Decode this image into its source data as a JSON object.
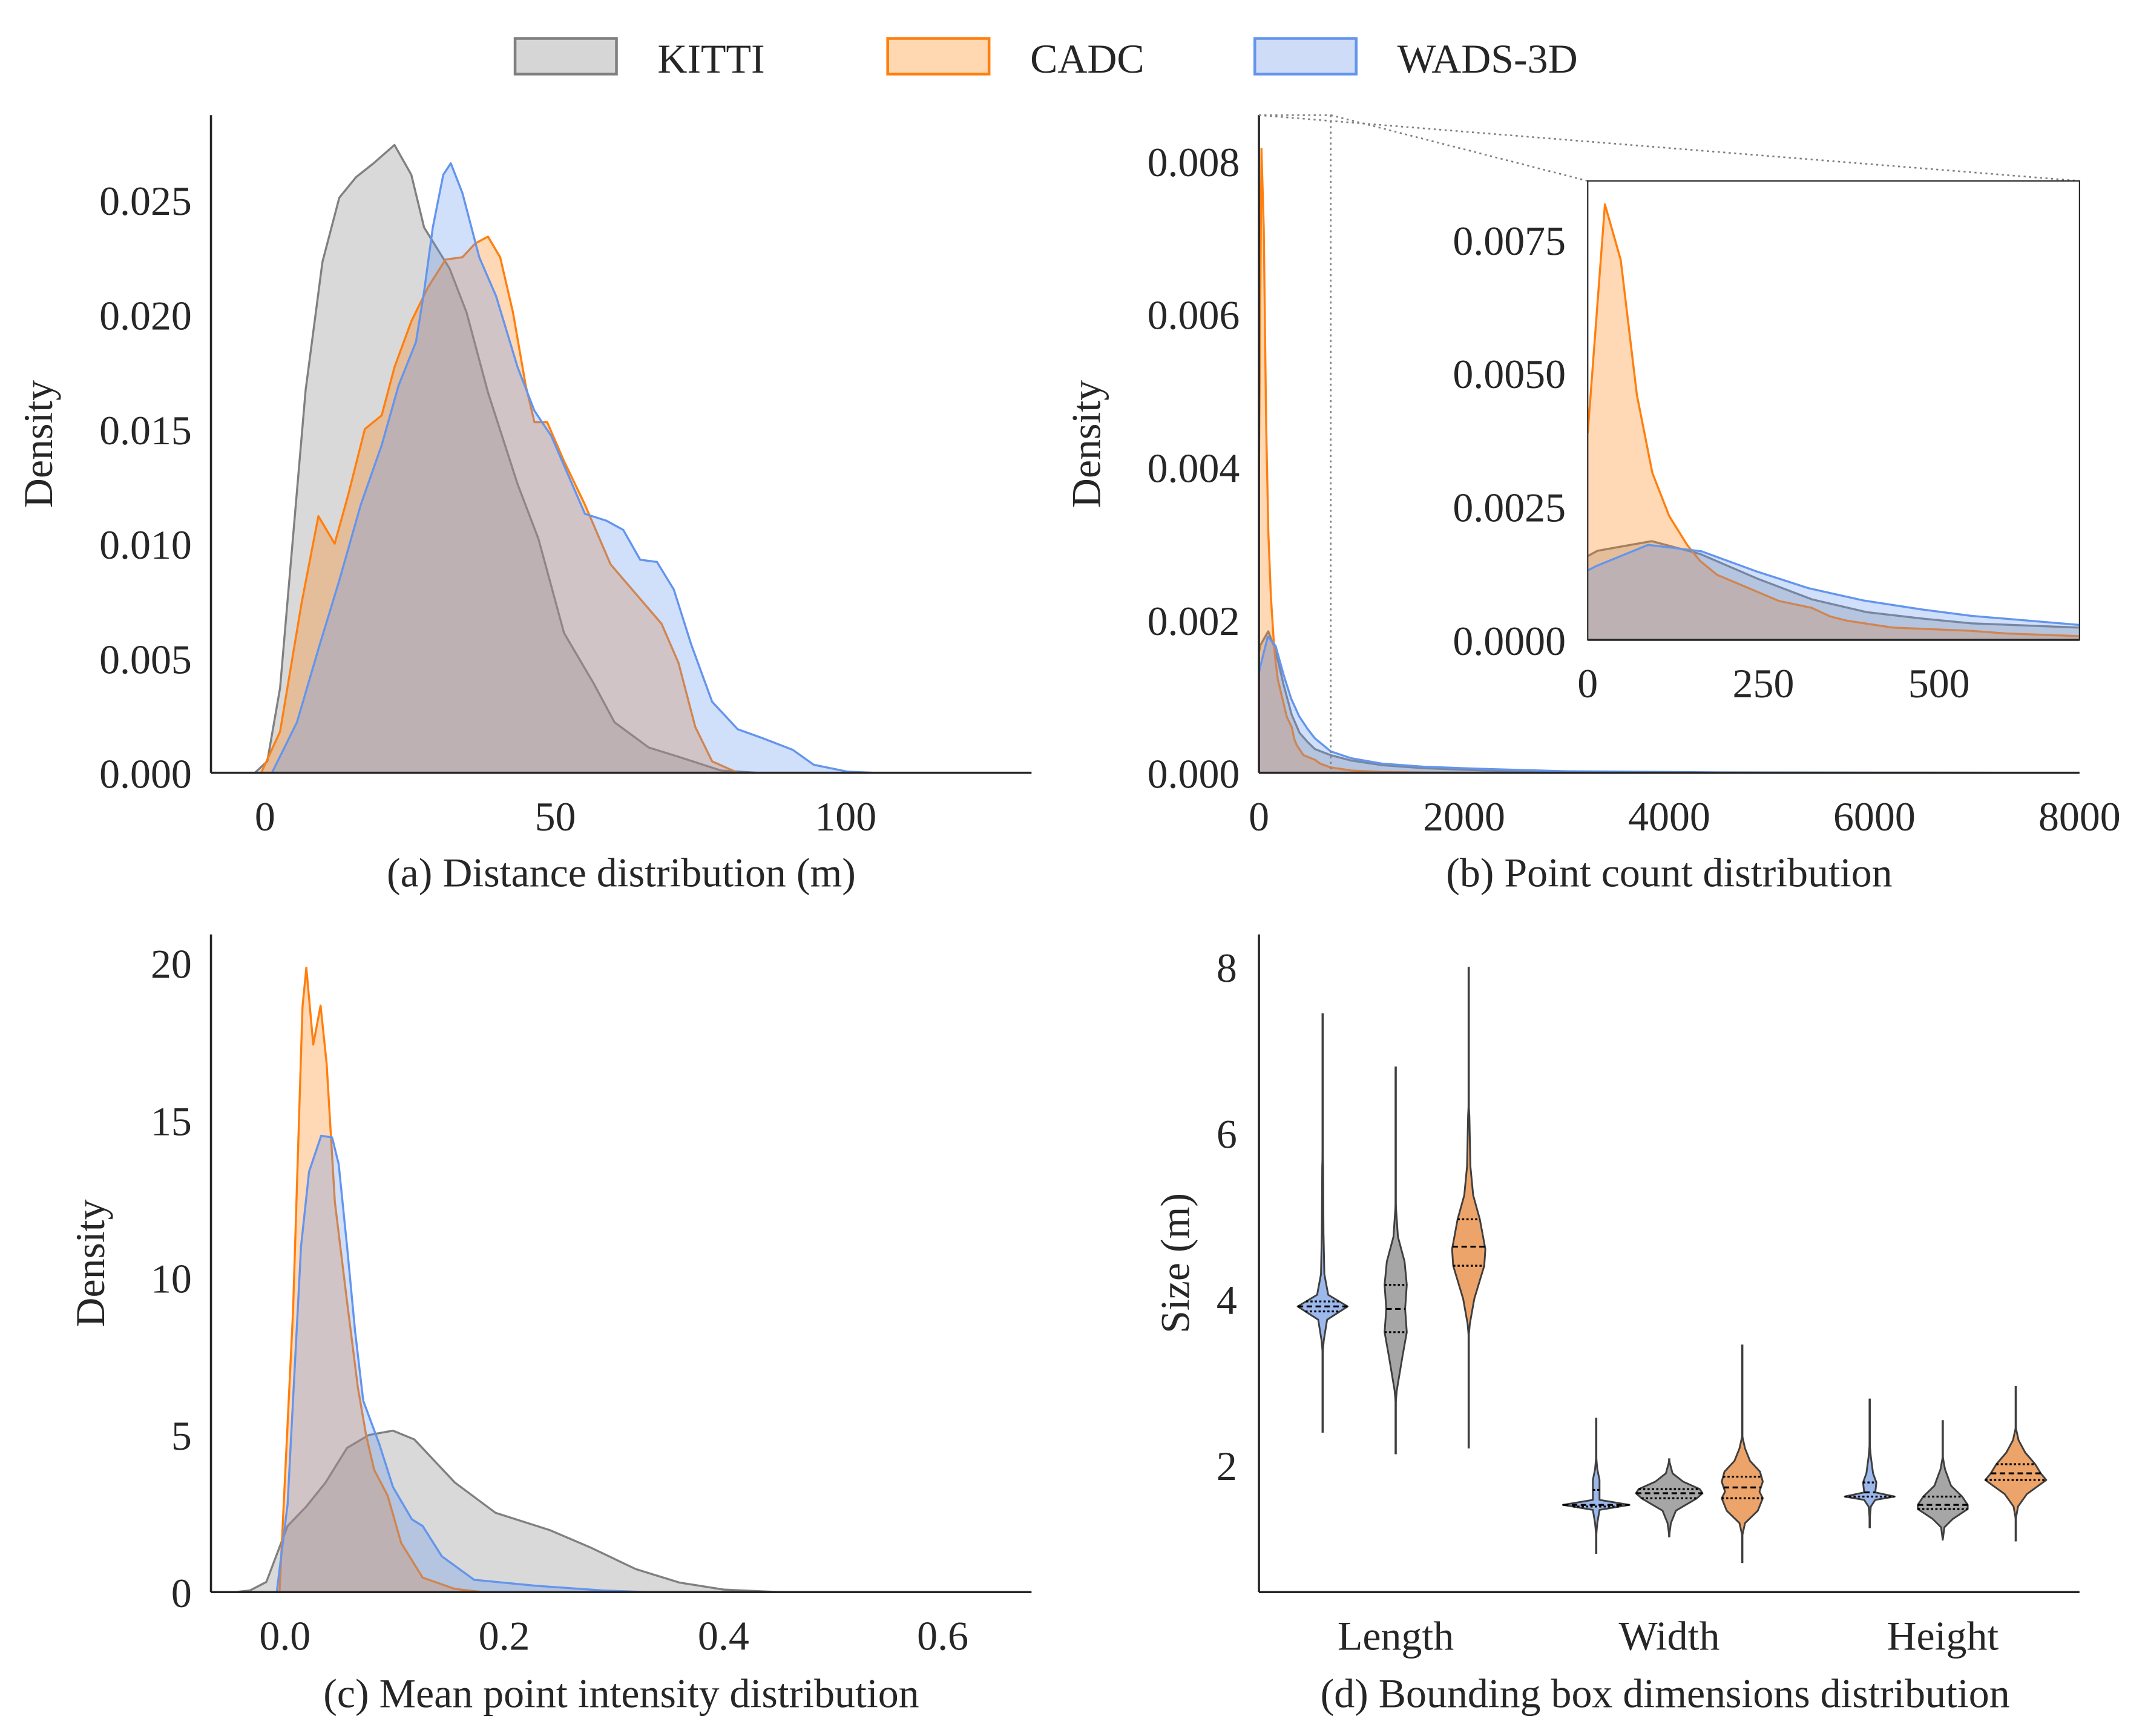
{
  "legend": {
    "items": [
      {
        "label": "KITTI",
        "key": "kitti"
      },
      {
        "label": "CADC",
        "key": "cadc"
      },
      {
        "label": "WADS-3D",
        "key": "wads"
      }
    ]
  },
  "colors": {
    "kitti": {
      "line": "#808080",
      "fill": "#d6d6d6"
    },
    "cadc": {
      "line": "#ff7f0e",
      "fill": "#ffd8b2"
    },
    "wads": {
      "line": "#6495ed",
      "fill": "#cfdcf7"
    },
    "violin": {
      "kitti": "#a6a6a6",
      "cadc": "#eda46a",
      "wads": "#9cb8ec"
    }
  },
  "chart_data": [
    {
      "id": "a",
      "type": "area",
      "title": "",
      "caption": "(a) Distance distribution (m)",
      "xlabel": "",
      "ylabel": "Density",
      "xlim": [
        -9.3,
        132
      ],
      "ylim": [
        0,
        0.0287
      ],
      "xticks": [
        0,
        50,
        100
      ],
      "xtick_labels": [
        "0",
        "50",
        "100"
      ],
      "yticks": [
        0,
        0.005,
        0.01,
        0.015,
        0.02,
        0.025
      ],
      "ytick_labels": [
        "0.000",
        "0.005",
        "0.010",
        "0.015",
        "0.020",
        "0.025"
      ],
      "grid": false,
      "series": [
        {
          "name": "KITTI",
          "key": "kitti",
          "x": [
            -3,
            -1.75,
            0.4,
            2.6,
            4.8,
            7.0,
            9.9,
            12.8,
            15.7,
            18.7,
            22.3,
            25.2,
            27.4,
            31.8,
            34.7,
            38.4,
            43.5,
            47.1,
            51.5,
            56.6,
            60.2,
            66.1,
            71.2,
            78.5,
            84.7
          ],
          "y": [
            0,
            0,
            0.0005,
            0.0037,
            0.0102,
            0.0167,
            0.0223,
            0.0251,
            0.026,
            0.0266,
            0.0274,
            0.0261,
            0.0238,
            0.022,
            0.0201,
            0.0166,
            0.0126,
            0.0102,
            0.0061,
            0.0039,
            0.0022,
            0.0011,
            0.0007,
            0.0001,
            0
          ]
        },
        {
          "name": "CADC",
          "key": "cadc",
          "x": [
            -0.65,
            2.6,
            6.3,
            9.2,
            12.0,
            14.3,
            17.2,
            20.1,
            22.3,
            25.2,
            28.1,
            31.1,
            34.0,
            36.2,
            38.4,
            40.5,
            42.7,
            44.9,
            46.4,
            48.6,
            51.5,
            55.1,
            59.5,
            63.9,
            68.3,
            71.2,
            74.1,
            77.0,
            81.4
          ],
          "y": [
            0,
            0.0018,
            0.0074,
            0.0112,
            0.01,
            0.0121,
            0.015,
            0.0156,
            0.0177,
            0.0197,
            0.0212,
            0.0224,
            0.0225,
            0.0231,
            0.0234,
            0.0225,
            0.0201,
            0.0169,
            0.0153,
            0.0153,
            0.0136,
            0.0117,
            0.0091,
            0.0078,
            0.0065,
            0.0048,
            0.002,
            0.0005,
            0
          ]
        },
        {
          "name": "WADS-3D",
          "key": "wads",
          "x": [
            1.2,
            5.5,
            9.2,
            12.8,
            16.5,
            20.1,
            23.0,
            26.0,
            27.4,
            28.9,
            30.7,
            32.0,
            34.0,
            36.9,
            39.8,
            43.5,
            46.4,
            49.3,
            52.2,
            55.1,
            58.8,
            61.7,
            64.6,
            67.5,
            70.4,
            73.4,
            77.0,
            81.4,
            85.8,
            90.9,
            94.5,
            100.3,
            104.7
          ],
          "y": [
            0,
            0.0022,
            0.0054,
            0.0084,
            0.0117,
            0.0143,
            0.0169,
            0.0188,
            0.021,
            0.0238,
            0.0261,
            0.0266,
            0.0253,
            0.0225,
            0.0208,
            0.0177,
            0.0158,
            0.0147,
            0.013,
            0.0113,
            0.011,
            0.0106,
            0.0093,
            0.0092,
            0.008,
            0.0056,
            0.0031,
            0.0019,
            0.0015,
            0.001,
            0.00035,
            5e-05,
            0
          ]
        }
      ]
    },
    {
      "id": "b",
      "type": "area",
      "title": "",
      "caption": "(b) Point count distribution",
      "xlabel": "",
      "ylabel": "Density",
      "xlim": [
        0,
        8000
      ],
      "ylim": [
        0,
        0.0086
      ],
      "xticks": [
        0,
        2000,
        4000,
        6000,
        8000
      ],
      "xtick_labels": [
        "0",
        "2000",
        "4000",
        "6000",
        "8000"
      ],
      "yticks": [
        0,
        0.002,
        0.004,
        0.006,
        0.008
      ],
      "ytick_labels": [
        "0.000",
        "0.002",
        "0.004",
        "0.006",
        "0.008"
      ],
      "grid": false,
      "series": [
        {
          "name": "KITTI",
          "key": "kitti",
          "x": [
            0,
            14,
            91,
            160,
            241,
            319,
            397,
            476,
            546,
            700,
            900,
            1200,
            1600,
            2200,
            3000,
            4500,
            6000,
            8000
          ],
          "y": [
            0.00157,
            0.00167,
            0.00185,
            0.00161,
            0.00115,
            0.00076,
            0.00052,
            0.0004,
            0.00031,
            0.00023,
            0.00016,
            0.0001,
            6e-05,
            3e-05,
            1e-05,
            3e-06,
            1e-06,
            0
          ]
        },
        {
          "name": "CADC",
          "key": "cadc",
          "x": [
            0,
            24.5,
            47,
            70,
            92,
            116,
            142,
            160,
            184,
            220,
            272,
            319,
            345,
            369,
            434,
            546,
            596,
            700,
            900,
            1200,
            1600,
            2200,
            3000,
            8000
          ],
          "y": [
            0.00387,
            0.00816,
            0.00712,
            0.00459,
            0.00313,
            0.00232,
            0.00177,
            0.00148,
            0.00122,
            0.00102,
            0.00073,
            0.0006,
            0.00044,
            0.00036,
            0.00023,
            0.00017,
            0.00012,
            7e-05,
            3e-05,
            1e-05,
            4e-06,
            1e-06,
            0,
            0
          ]
        },
        {
          "name": "WADS-3D",
          "key": "wads",
          "x": [
            0,
            11.5,
            86,
            162,
            241,
            314,
            392,
            476,
            546,
            700,
            900,
            1200,
            1600,
            2200,
            3000,
            4500,
            6000,
            8000
          ],
          "y": [
            0.0013,
            0.00138,
            0.00178,
            0.00166,
            0.00128,
            0.00097,
            0.00074,
            0.00057,
            0.00045,
            0.00028,
            0.00019,
            0.00012,
            8e-05,
            5e-05,
            2e-05,
            5e-06,
            1e-06,
            0
          ]
        }
      ],
      "inset": {
        "xlim": [
          0,
          700
        ],
        "ylim": [
          0,
          0.0086
        ],
        "xticks": [
          0,
          250,
          500
        ],
        "xtick_labels": [
          "0",
          "250",
          "500"
        ],
        "yticks": [
          0,
          0.0025,
          0.005,
          0.0075
        ],
        "ytick_labels": [
          "0.0000",
          "0.0025",
          "0.0050",
          "0.0075"
        ],
        "zoom_region": {
          "x": [
            0,
            700
          ]
        }
      }
    },
    {
      "id": "c",
      "type": "area",
      "title": "",
      "caption": "(c) Mean point intensity distribution",
      "xlabel": "",
      "ylabel": "Density",
      "xlim": [
        -0.0675,
        0.681
      ],
      "ylim": [
        0,
        20.9
      ],
      "xticks": [
        0,
        0.2,
        0.4,
        0.6
      ],
      "xtick_labels": [
        "0.0",
        "0.2",
        "0.4",
        "0.6"
      ],
      "yticks": [
        0,
        5,
        10,
        15,
        20
      ],
      "ytick_labels": [
        "0",
        "5",
        "10",
        "15",
        "20"
      ],
      "grid": false,
      "series": [
        {
          "name": "KITTI",
          "key": "kitti",
          "x": [
            -0.045,
            -0.032,
            -0.017,
            0.0024,
            0.0195,
            0.037,
            0.0566,
            0.0764,
            0.0985,
            0.118,
            0.155,
            0.192,
            0.2415,
            0.2785,
            0.32,
            0.36,
            0.4,
            0.45
          ],
          "y": [
            0,
            0.05,
            0.32,
            2.1,
            2.72,
            3.48,
            4.58,
            4.99,
            5.13,
            4.85,
            3.48,
            2.52,
            1.97,
            1.42,
            0.73,
            0.3,
            0.08,
            0
          ]
        },
        {
          "name": "CADC",
          "key": "cadc",
          "x": [
            -0.005,
            0.0074,
            0.016,
            0.0195,
            0.0258,
            0.0325,
            0.038,
            0.0455,
            0.0566,
            0.0665,
            0.074,
            0.0813,
            0.0936,
            0.106,
            0.1256,
            0.155,
            0.18
          ],
          "y": [
            0,
            8.96,
            18.6,
            19.84,
            17.4,
            18.64,
            16.8,
            12.4,
            9.24,
            6.5,
            4.99,
            3.89,
            3.07,
            1.56,
            0.46,
            0.1,
            0
          ]
        },
        {
          "name": "WADS-3D",
          "key": "wads",
          "x": [
            -0.0075,
            0.0024,
            0.0147,
            0.022,
            0.033,
            0.043,
            0.049,
            0.0566,
            0.064,
            0.0714,
            0.086,
            0.0985,
            0.1158,
            0.1256,
            0.143,
            0.1725,
            0.229,
            0.29,
            0.33
          ],
          "y": [
            0,
            2.79,
            11.0,
            13.36,
            14.5,
            14.45,
            13.6,
            11.0,
            8.28,
            6.08,
            4.71,
            3.34,
            2.31,
            2.1,
            1.14,
            0.39,
            0.2,
            0.05,
            0
          ]
        }
      ]
    },
    {
      "id": "d",
      "type": "violin",
      "title": "",
      "caption": "(d) Bounding box dimensions distribution",
      "xlabel": "",
      "ylabel": "Size (m)",
      "ylim": [
        0.47,
        8.39
      ],
      "yticks": [
        2,
        4,
        6,
        8
      ],
      "ytick_labels": [
        "2",
        "4",
        "6",
        "8"
      ],
      "categories": [
        "Length",
        "Width",
        "Height"
      ],
      "hue_order": [
        "wads",
        "kitti",
        "cadc"
      ],
      "grid": false,
      "violins": [
        {
          "category": "Length",
          "key": "wads",
          "min": 2.39,
          "max": 7.44,
          "q1": 3.85,
          "median": 3.91,
          "q3": 3.97,
          "q3_marker": 4.47,
          "body": [
            [
              3.5,
              0.02
            ],
            [
              3.75,
              0.08
            ],
            [
              3.91,
              0.45
            ],
            [
              4.05,
              0.1
            ],
            [
              4.3,
              0.03
            ],
            [
              4.8,
              0.015
            ],
            [
              5.6,
              0.008
            ]
          ]
        },
        {
          "category": "Length",
          "key": "kitti",
          "min": 2.13,
          "max": 6.8,
          "q1": 3.6,
          "median": 3.88,
          "q3": 4.17,
          "body": [
            [
              2.9,
              0.02
            ],
            [
              3.3,
              0.12
            ],
            [
              3.6,
              0.2
            ],
            [
              3.88,
              0.17
            ],
            [
              4.17,
              0.2
            ],
            [
              4.45,
              0.16
            ],
            [
              4.75,
              0.04
            ],
            [
              5.0,
              0.015
            ]
          ]
        },
        {
          "category": "Length",
          "key": "cadc",
          "min": 2.2,
          "max": 8.0,
          "q1": 4.4,
          "median": 4.63,
          "q3": 4.96,
          "body": [
            [
              3.7,
              0.02
            ],
            [
              4.0,
              0.1
            ],
            [
              4.4,
              0.28
            ],
            [
              4.6,
              0.3
            ],
            [
              4.96,
              0.2
            ],
            [
              5.25,
              0.08
            ],
            [
              5.6,
              0.03
            ],
            [
              6.2,
              0.012
            ]
          ]
        },
        {
          "category": "Width",
          "key": "wads",
          "min": 0.93,
          "max": 2.57,
          "q1": 1.5,
          "median": 1.52,
          "q3": 1.7,
          "body": [
            [
              1.3,
              0.02
            ],
            [
              1.46,
              0.06
            ],
            [
              1.52,
              0.6
            ],
            [
              1.58,
              0.06
            ],
            [
              1.7,
              0.06
            ],
            [
              1.82,
              0.06
            ],
            [
              1.95,
              0.02
            ]
          ]
        },
        {
          "category": "Width",
          "key": "kitti",
          "min": 1.13,
          "max": 2.08,
          "q1": 1.6,
          "median": 1.66,
          "q3": 1.71,
          "body": [
            [
              1.3,
              0.03
            ],
            [
              1.45,
              0.12
            ],
            [
              1.6,
              0.5
            ],
            [
              1.66,
              0.6
            ],
            [
              1.71,
              0.55
            ],
            [
              1.8,
              0.25
            ],
            [
              1.9,
              0.06
            ]
          ]
        },
        {
          "category": "Width",
          "key": "cadc",
          "min": 0.82,
          "max": 3.45,
          "q1": 1.6,
          "median": 1.73,
          "q3": 1.86,
          "body": [
            [
              1.3,
              0.05
            ],
            [
              1.45,
              0.28
            ],
            [
              1.6,
              0.37
            ],
            [
              1.68,
              0.31
            ],
            [
              1.8,
              0.37
            ],
            [
              1.92,
              0.32
            ],
            [
              2.05,
              0.14
            ],
            [
              2.2,
              0.05
            ]
          ]
        },
        {
          "category": "Height",
          "key": "wads",
          "min": 1.24,
          "max": 2.8,
          "q1": 1.62,
          "median": 1.67,
          "q3": 1.79,
          "body": [
            [
              1.5,
              0.02
            ],
            [
              1.58,
              0.1
            ],
            [
              1.62,
              0.45
            ],
            [
              1.67,
              0.1
            ],
            [
              1.79,
              0.12
            ],
            [
              1.9,
              0.06
            ],
            [
              2.1,
              0.02
            ]
          ]
        },
        {
          "category": "Height",
          "key": "kitti",
          "min": 1.12,
          "max": 2.54,
          "q1": 1.47,
          "median": 1.52,
          "q3": 1.62,
          "body": [
            [
              1.25,
              0.03
            ],
            [
              1.35,
              0.18
            ],
            [
              1.47,
              0.45
            ],
            [
              1.52,
              0.45
            ],
            [
              1.62,
              0.35
            ],
            [
              1.75,
              0.15
            ],
            [
              1.95,
              0.04
            ]
          ]
        },
        {
          "category": "Height",
          "key": "cadc",
          "min": 1.08,
          "max": 2.95,
          "q1": 1.82,
          "median": 1.9,
          "q3": 2.01,
          "body": [
            [
              1.5,
              0.04
            ],
            [
              1.65,
              0.2
            ],
            [
              1.82,
              0.55
            ],
            [
              1.9,
              0.45
            ],
            [
              2.01,
              0.35
            ],
            [
              2.15,
              0.17
            ],
            [
              2.3,
              0.05
            ]
          ]
        }
      ]
    }
  ]
}
